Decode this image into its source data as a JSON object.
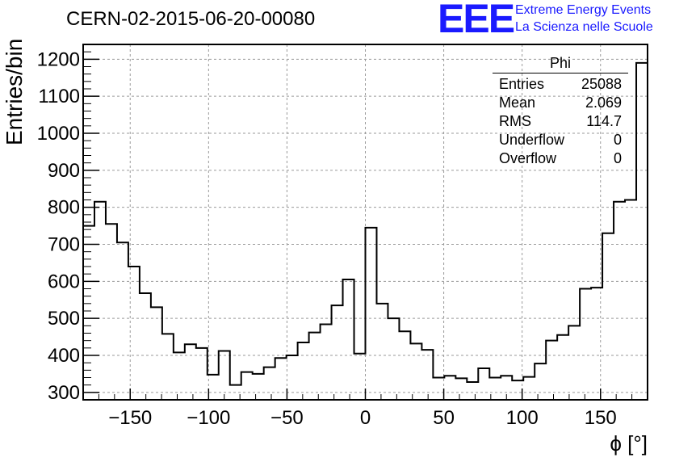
{
  "header": {
    "title": "CERN-02-2015-06-20-00080",
    "logo_text": "EEE",
    "logo_line1": "Extreme Energy Events",
    "logo_line2": "La Scienza nelle Scuole"
  },
  "stats_box": {
    "title": "Phi",
    "rows": [
      {
        "label": "Entries",
        "value": "25088"
      },
      {
        "label": "Mean",
        "value": "2.069"
      },
      {
        "label": "RMS",
        "value": "114.7"
      },
      {
        "label": "Underflow",
        "value": "0"
      },
      {
        "label": "Overflow",
        "value": "0"
      }
    ]
  },
  "chart_data": {
    "type": "bar",
    "style": "step-histogram",
    "xlabel": "ϕ [°]",
    "ylabel": "Entries/bin",
    "xlim": [
      -180,
      180
    ],
    "ylim": [
      280,
      1240
    ],
    "bin_width": 7.2,
    "bin_edges_start": -180,
    "xticks": [
      -150,
      -100,
      -50,
      0,
      50,
      100,
      150
    ],
    "yticks": [
      300,
      400,
      500,
      600,
      700,
      800,
      900,
      1000,
      1100,
      1200
    ],
    "grid": true,
    "values": [
      750,
      815,
      755,
      705,
      640,
      568,
      530,
      458,
      408,
      430,
      420,
      348,
      412,
      320,
      355,
      350,
      368,
      393,
      400,
      435,
      462,
      484,
      535,
      605,
      405,
      745,
      540,
      500,
      465,
      432,
      415,
      340,
      345,
      338,
      328,
      365,
      340,
      345,
      332,
      342,
      378,
      440,
      455,
      480,
      580,
      583,
      730,
      815,
      820,
      1190
    ],
    "line_color": "#000000"
  }
}
